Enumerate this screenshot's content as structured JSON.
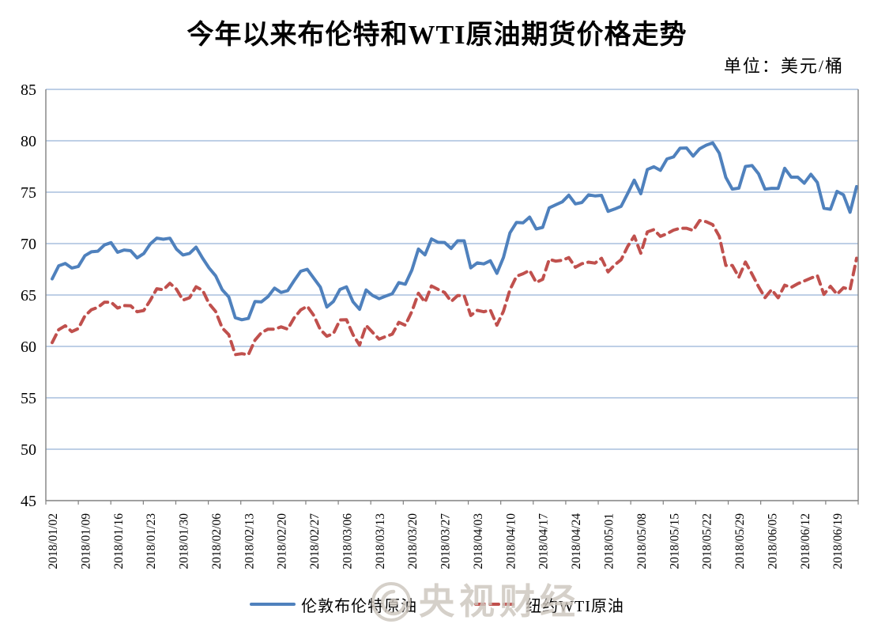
{
  "title": "今年以来布伦特和WTI原油期货价格走势",
  "unit_label": "单位：美元/桶",
  "watermark": {
    "text": "央视财经",
    "logo": "weibo-eye-icon",
    "color": "#cdc6be"
  },
  "legend": {
    "position": "bottom"
  },
  "colors": {
    "brent": "#4F81BD",
    "wti": "#C0504D",
    "gridline": "#A9BFDE",
    "axis": "#808080"
  },
  "chart_data": {
    "type": "line",
    "title": "今年以来布伦特和WTI原油期货价格走势",
    "unit": "美元/桶",
    "xlabel": "",
    "ylabel": "",
    "ylim": [
      45,
      85
    ],
    "ytick_step": 5,
    "yticks": [
      45,
      50,
      55,
      60,
      65,
      70,
      75,
      80,
      85
    ],
    "grid": "horizontal",
    "legend_position": "bottom",
    "x_labels": [
      "2018/01/02",
      "2018/01/09",
      "2018/01/16",
      "2018/01/23",
      "2018/01/30",
      "2018/02/06",
      "2018/02/13",
      "2018/02/20",
      "2018/02/27",
      "2018/03/06",
      "2018/03/13",
      "2018/03/20",
      "2018/03/27",
      "2018/04/03",
      "2018/04/10",
      "2018/04/17",
      "2018/04/24",
      "2018/05/01",
      "2018/05/08",
      "2018/05/15",
      "2018/05/22",
      "2018/05/29",
      "2018/06/05",
      "2018/06/12",
      "2018/06/19"
    ],
    "points_per_label": 5,
    "series": [
      {
        "id": "brent",
        "name": "伦敦布伦特原油",
        "color": "#4F81BD",
        "line_style": "solid",
        "values": [
          66.57,
          67.84,
          68.07,
          67.62,
          67.78,
          68.82,
          69.2,
          69.26,
          69.87,
          70.09,
          69.15,
          69.38,
          69.31,
          68.61,
          69.03,
          69.96,
          70.53,
          70.42,
          70.52,
          69.46,
          68.89,
          69.05,
          69.65,
          68.58,
          67.62,
          66.86,
          65.51,
          64.81,
          62.79,
          62.59,
          62.72,
          64.36,
          64.33,
          64.84,
          65.67,
          65.25,
          65.42,
          66.39,
          67.31,
          67.5,
          66.63,
          65.78,
          63.83,
          64.37,
          65.54,
          65.79,
          64.34,
          63.61,
          65.49,
          64.95,
          64.64,
          64.89,
          65.12,
          66.21,
          66.05,
          67.42,
          69.47,
          68.91,
          70.45,
          70.12,
          70.11,
          69.53,
          70.27,
          70.27,
          67.64,
          68.12,
          68.02,
          68.33,
          67.11,
          68.65,
          71.04,
          72.06,
          72.02,
          72.58,
          71.42,
          71.58,
          73.48,
          73.78,
          74.06,
          74.71,
          73.86,
          74.0,
          74.74,
          74.64,
          74.69,
          73.13,
          73.36,
          73.62,
          74.87,
          76.17,
          74.85,
          77.21,
          77.47,
          77.12,
          78.23,
          78.43,
          79.28,
          79.3,
          78.51,
          79.22,
          79.57,
          79.8,
          78.79,
          76.44,
          75.3,
          75.39,
          77.5,
          77.59,
          76.79,
          75.29,
          75.38,
          75.36,
          77.32,
          76.46,
          76.46,
          75.88,
          76.74,
          75.94,
          73.44,
          73.34,
          75.08,
          74.74,
          73.05,
          75.55
        ]
      },
      {
        "id": "wti",
        "name": "纽约WTI原油",
        "color": "#C0504D",
        "line_style": "dashed",
        "values": [
          60.37,
          61.63,
          62.01,
          61.44,
          61.73,
          62.96,
          63.57,
          63.8,
          64.3,
          64.3,
          63.73,
          63.97,
          63.95,
          63.37,
          63.49,
          64.47,
          65.61,
          65.51,
          66.14,
          65.56,
          64.5,
          64.73,
          65.8,
          65.45,
          64.15,
          63.39,
          61.79,
          61.15,
          59.2,
          59.29,
          59.19,
          60.6,
          61.34,
          61.68,
          61.68,
          61.9,
          61.68,
          62.77,
          63.55,
          63.91,
          63.01,
          61.64,
          60.99,
          61.25,
          62.57,
          62.6,
          61.15,
          60.12,
          62.04,
          61.36,
          60.71,
          60.96,
          61.19,
          62.34,
          62.06,
          63.4,
          65.17,
          64.3,
          65.88,
          65.55,
          65.25,
          64.38,
          64.94,
          64.94,
          63.01,
          63.51,
          63.37,
          63.54,
          62.06,
          63.42,
          65.51,
          66.82,
          67.07,
          67.39,
          66.22,
          66.52,
          68.47,
          68.29,
          68.38,
          68.64,
          67.7,
          68.05,
          68.19,
          68.1,
          68.57,
          67.25,
          67.93,
          68.43,
          69.72,
          70.73,
          69.06,
          71.14,
          71.36,
          70.7,
          70.96,
          71.31,
          71.49,
          71.49,
          71.28,
          72.24,
          72.13,
          71.84,
          70.71,
          67.88,
          67.88,
          66.73,
          68.21,
          67.04,
          65.81,
          64.75,
          65.52,
          64.73,
          65.95,
          65.74,
          66.1,
          66.36,
          66.64,
          66.89,
          65.06,
          65.85,
          65.07,
          65.71,
          65.54,
          68.58
        ]
      }
    ]
  }
}
